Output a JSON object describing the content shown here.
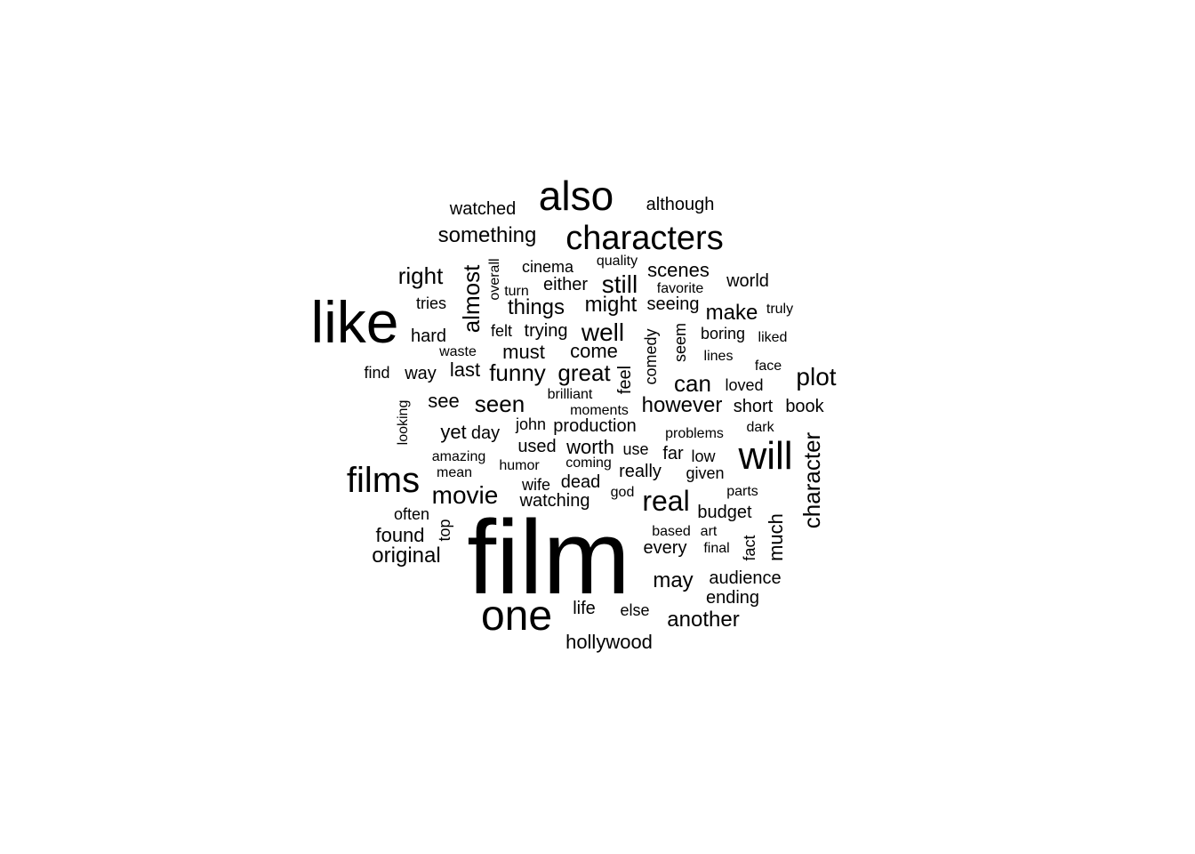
{
  "cloud": {
    "words": [
      {
        "text": "film"
      },
      {
        "text": "like"
      },
      {
        "text": "one"
      },
      {
        "text": "also"
      },
      {
        "text": "characters"
      },
      {
        "text": "will"
      },
      {
        "text": "films"
      },
      {
        "text": "movie"
      },
      {
        "text": "real"
      },
      {
        "text": "character"
      },
      {
        "text": "plot"
      },
      {
        "text": "something"
      },
      {
        "text": "well"
      },
      {
        "text": "funny"
      },
      {
        "text": "great"
      },
      {
        "text": "seen"
      },
      {
        "text": "still"
      },
      {
        "text": "right"
      },
      {
        "text": "almost"
      },
      {
        "text": "might"
      },
      {
        "text": "things"
      },
      {
        "text": "make"
      },
      {
        "text": "can"
      },
      {
        "text": "however"
      },
      {
        "text": "much"
      },
      {
        "text": "original"
      },
      {
        "text": "found"
      },
      {
        "text": "may"
      },
      {
        "text": "another"
      },
      {
        "text": "watched"
      },
      {
        "text": "although"
      },
      {
        "text": "scenes"
      },
      {
        "text": "world"
      },
      {
        "text": "hollywood"
      },
      {
        "text": "see"
      },
      {
        "text": "yet"
      },
      {
        "text": "day"
      },
      {
        "text": "must"
      },
      {
        "text": "come"
      },
      {
        "text": "last"
      },
      {
        "text": "worth"
      },
      {
        "text": "watching"
      },
      {
        "text": "ending"
      },
      {
        "text": "audience"
      },
      {
        "text": "life"
      },
      {
        "text": "else"
      },
      {
        "text": "every"
      },
      {
        "text": "far"
      },
      {
        "text": "really"
      },
      {
        "text": "dead"
      },
      {
        "text": "used"
      },
      {
        "text": "short"
      },
      {
        "text": "book"
      },
      {
        "text": "hard"
      },
      {
        "text": "way"
      },
      {
        "text": "tries"
      },
      {
        "text": "trying"
      },
      {
        "text": "production"
      },
      {
        "text": "budget"
      },
      {
        "text": "cinema"
      },
      {
        "text": "either"
      },
      {
        "text": "seeing"
      },
      {
        "text": "loved"
      },
      {
        "text": "boring"
      },
      {
        "text": "felt"
      },
      {
        "text": "feel"
      },
      {
        "text": "comedy"
      },
      {
        "text": "seem"
      },
      {
        "text": "quality"
      },
      {
        "text": "favorite"
      },
      {
        "text": "turn"
      },
      {
        "text": "overall"
      },
      {
        "text": "truly"
      },
      {
        "text": "liked"
      },
      {
        "text": "lines"
      },
      {
        "text": "face"
      },
      {
        "text": "find"
      },
      {
        "text": "waste"
      },
      {
        "text": "looking"
      },
      {
        "text": "brilliant"
      },
      {
        "text": "moments"
      },
      {
        "text": "john"
      },
      {
        "text": "problems"
      },
      {
        "text": "dark"
      },
      {
        "text": "amazing"
      },
      {
        "text": "mean"
      },
      {
        "text": "humor"
      },
      {
        "text": "coming"
      },
      {
        "text": "use"
      },
      {
        "text": "low"
      },
      {
        "text": "given"
      },
      {
        "text": "wife"
      },
      {
        "text": "god"
      },
      {
        "text": "parts"
      },
      {
        "text": "often"
      },
      {
        "text": "top"
      },
      {
        "text": "based"
      },
      {
        "text": "art"
      },
      {
        "text": "final"
      },
      {
        "text": "fact"
      }
    ]
  }
}
